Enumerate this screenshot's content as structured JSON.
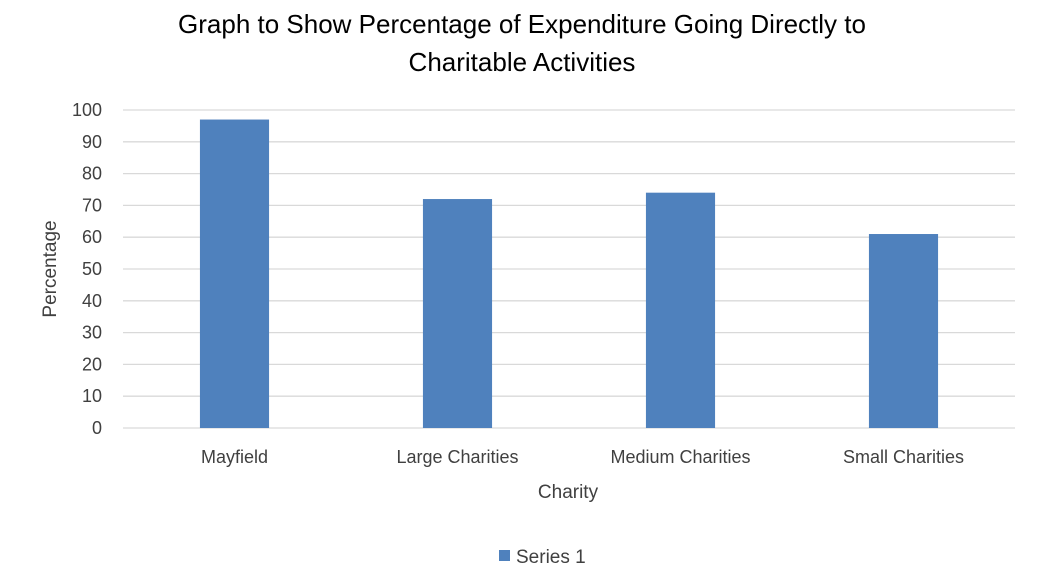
{
  "chart_data": {
    "type": "bar",
    "title_lines": [
      "Graph to Show Percentage of Expenditure Going Directly to",
      "Charitable Activities"
    ],
    "categories": [
      "Mayfield",
      "Large Charities",
      "Medium Charities",
      "Small Charities"
    ],
    "series": [
      {
        "name": "Series 1",
        "values": [
          97,
          72,
          74,
          61
        ],
        "color": "#4f81bd"
      }
    ],
    "xlabel": "Charity",
    "ylabel": "Percentage",
    "ylim": [
      0,
      100
    ],
    "yticks": [
      0,
      10,
      20,
      30,
      40,
      50,
      60,
      70,
      80,
      90,
      100
    ],
    "grid": true,
    "legend_position": "bottom",
    "gridline_color": "#d9d9d9",
    "text_color": "#404040"
  }
}
